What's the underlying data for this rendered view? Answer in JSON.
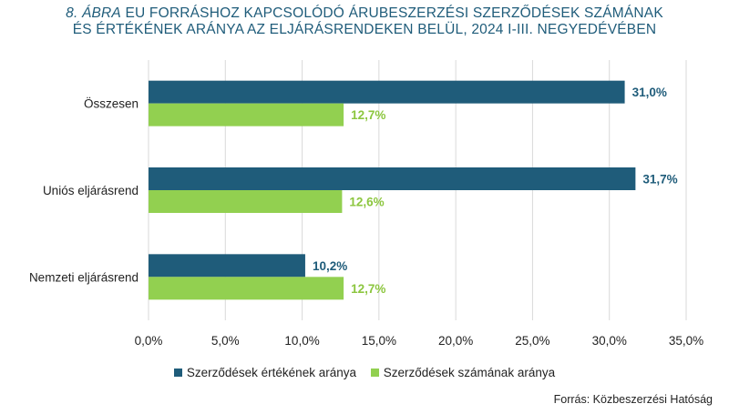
{
  "title": {
    "label": "8. ÁBRA",
    "line1": "EU FORRÁSHOZ KAPCSOLÓDÓ ÁRUBESZERZÉSI SZERZŐDÉSEK SZÁMÁNAK",
    "line2": "ÉS ÉRTÉKÉNEK ARÁNYA AZ ELJÁRÁSRENDEKEN BELÜL, 2024 I-III. NEGYEDÉVÉBEN"
  },
  "colors": {
    "value_share": "#1f5c7a",
    "count_share": "#92d050",
    "grid": "#d9d9d9",
    "axis_text": "#222222"
  },
  "chart_data": {
    "type": "bar",
    "orientation": "horizontal",
    "categories": [
      "Összesen",
      "Uniós eljárásrend",
      "Nemzeti eljárásrend"
    ],
    "series": [
      {
        "name": "Szerződések értékének aránya",
        "values": [
          31.0,
          31.7,
          10.2
        ],
        "labels": [
          "31,0%",
          "31,7%",
          "10,2%"
        ]
      },
      {
        "name": "Szerződések számának aránya",
        "values": [
          12.7,
          12.6,
          12.7
        ],
        "labels": [
          "12,7%",
          "12,6%",
          "12,7%"
        ]
      }
    ],
    "xlim": [
      0,
      35
    ],
    "xticks": [
      "0,0%",
      "5,0%",
      "10,0%",
      "15,0%",
      "20,0%",
      "25,0%",
      "30,0%",
      "35,0%"
    ],
    "grid": true,
    "legend_position": "bottom"
  },
  "source": "Forrás: Közbeszerzési Hatóság"
}
